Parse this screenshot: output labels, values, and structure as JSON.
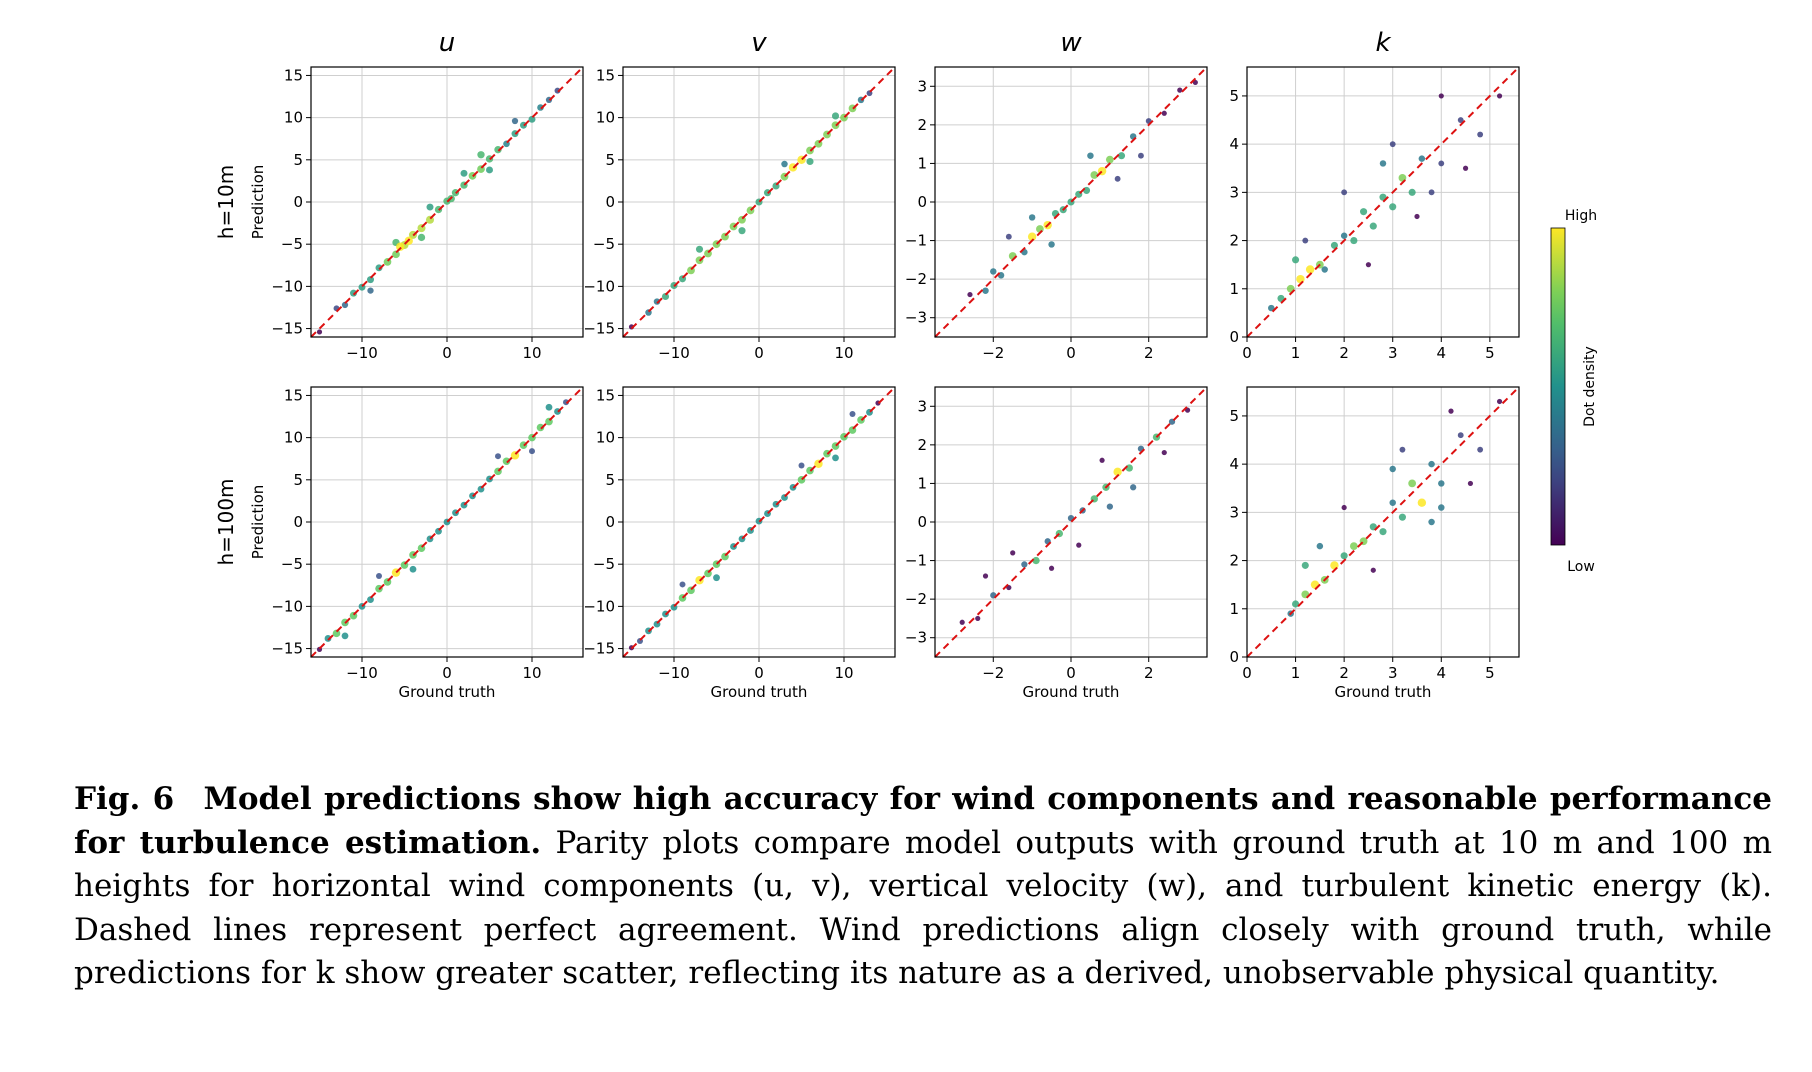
{
  "chart_data": {
    "type": "scatter",
    "description_style": "density-colored parity scatter grid",
    "columns": [
      "u",
      "v",
      "w",
      "k"
    ],
    "rows": [
      "h=10m",
      "h=100m"
    ],
    "xlabel": "Ground truth",
    "ylabel": "Prediction",
    "colorbar": {
      "label": "Dot density",
      "high": "High",
      "low": "Low",
      "colormap": "viridis"
    },
    "reference_line": {
      "style": "dashed",
      "color": "#dd1111"
    },
    "panels": [
      {
        "row": "h=10m",
        "col": "u",
        "xlim": [
          -16,
          16
        ],
        "ylim": [
          -16,
          16
        ],
        "xticks": [
          -10,
          0,
          10
        ],
        "yticks": [
          -15,
          -10,
          -5,
          0,
          5,
          10,
          15
        ],
        "points": [
          [
            -15,
            -15.4
          ],
          [
            -13,
            -12.6
          ],
          [
            -12,
            -12.2
          ],
          [
            -11,
            -10.8
          ],
          [
            -10,
            -10.1
          ],
          [
            -9,
            -9.2
          ],
          [
            -8,
            -7.8
          ],
          [
            -7,
            -7.1
          ],
          [
            -6,
            -6.2
          ],
          [
            -5.5,
            -5.3
          ],
          [
            -5,
            -5.1
          ],
          [
            -4.5,
            -4.6
          ],
          [
            -4,
            -3.9
          ],
          [
            -3,
            -3.1
          ],
          [
            -2,
            -2.1
          ],
          [
            -1,
            -0.9
          ],
          [
            0,
            0.1
          ],
          [
            0.5,
            0.4
          ],
          [
            1,
            1.1
          ],
          [
            2,
            2.0
          ],
          [
            3,
            3.1
          ],
          [
            4,
            3.9
          ],
          [
            5,
            5.1
          ],
          [
            6,
            6.2
          ],
          [
            7,
            6.9
          ],
          [
            8,
            8.1
          ],
          [
            9,
            9.1
          ],
          [
            10,
            9.8
          ],
          [
            11,
            11.2
          ],
          [
            12,
            12.1
          ],
          [
            13,
            13.2
          ],
          [
            -6,
            -4.8
          ],
          [
            -3,
            -4.2
          ],
          [
            2,
            3.4
          ],
          [
            5,
            3.8
          ],
          [
            8,
            9.6
          ],
          [
            -9,
            -10.5
          ],
          [
            4,
            5.6
          ],
          [
            -2,
            -0.6
          ]
        ]
      },
      {
        "row": "h=10m",
        "col": "v",
        "xlim": [
          -16,
          16
        ],
        "ylim": [
          -16,
          16
        ],
        "xticks": [
          -10,
          0,
          10
        ],
        "yticks": [
          -15,
          -10,
          -5,
          0,
          5,
          10,
          15
        ],
        "points": [
          [
            -15,
            -14.8
          ],
          [
            -13,
            -13.1
          ],
          [
            -12,
            -11.8
          ],
          [
            -11,
            -11.2
          ],
          [
            -10,
            -9.9
          ],
          [
            -9,
            -9.1
          ],
          [
            -8,
            -8.1
          ],
          [
            -7,
            -6.9
          ],
          [
            -6,
            -6.1
          ],
          [
            -5,
            -5.0
          ],
          [
            -4,
            -4.1
          ],
          [
            -3,
            -2.9
          ],
          [
            -2,
            -2.1
          ],
          [
            -1,
            -1.0
          ],
          [
            0,
            0.0
          ],
          [
            1,
            1.1
          ],
          [
            2,
            1.9
          ],
          [
            3,
            3.0
          ],
          [
            4,
            4.1
          ],
          [
            5,
            5.0
          ],
          [
            6,
            6.1
          ],
          [
            7,
            6.9
          ],
          [
            8,
            8.0
          ],
          [
            9,
            9.1
          ],
          [
            10,
            10.0
          ],
          [
            11,
            11.1
          ],
          [
            12,
            12.1
          ],
          [
            13,
            12.9
          ],
          [
            -7,
            -5.6
          ],
          [
            -2,
            -3.4
          ],
          [
            3,
            4.5
          ],
          [
            6,
            4.8
          ],
          [
            9,
            10.2
          ]
        ]
      },
      {
        "row": "h=10m",
        "col": "w",
        "xlim": [
          -3.5,
          3.5
        ],
        "ylim": [
          -3.5,
          3.5
        ],
        "xticks": [
          -2,
          0,
          2
        ],
        "yticks": [
          -3,
          -2,
          -1,
          0,
          1,
          2,
          3
        ],
        "points": [
          [
            -2.6,
            -2.4
          ],
          [
            -2.2,
            -2.3
          ],
          [
            -2.0,
            -1.8
          ],
          [
            -1.8,
            -1.9
          ],
          [
            -1.5,
            -1.4
          ],
          [
            -1.2,
            -1.3
          ],
          [
            -1.0,
            -0.9
          ],
          [
            -0.8,
            -0.7
          ],
          [
            -0.6,
            -0.6
          ],
          [
            -0.4,
            -0.3
          ],
          [
            -0.2,
            -0.2
          ],
          [
            0,
            0
          ],
          [
            0.2,
            0.2
          ],
          [
            0.4,
            0.3
          ],
          [
            0.6,
            0.7
          ],
          [
            0.8,
            0.8
          ],
          [
            1.0,
            1.1
          ],
          [
            1.3,
            1.2
          ],
          [
            1.6,
            1.7
          ],
          [
            2.0,
            2.1
          ],
          [
            2.4,
            2.3
          ],
          [
            2.8,
            2.9
          ],
          [
            3.2,
            3.1
          ],
          [
            -1.0,
            -0.4
          ],
          [
            0.5,
            1.2
          ],
          [
            1.2,
            0.6
          ],
          [
            -0.5,
            -1.1
          ],
          [
            1.8,
            1.2
          ],
          [
            -1.6,
            -0.9
          ]
        ]
      },
      {
        "row": "h=10m",
        "col": "k",
        "xlim": [
          0,
          5.6
        ],
        "ylim": [
          0,
          5.6
        ],
        "xticks": [
          0,
          1,
          2,
          3,
          4,
          5
        ],
        "yticks": [
          0,
          1,
          2,
          3,
          4,
          5
        ],
        "points": [
          [
            0.5,
            0.6
          ],
          [
            0.7,
            0.8
          ],
          [
            0.9,
            1.0
          ],
          [
            1.1,
            1.2
          ],
          [
            1.3,
            1.4
          ],
          [
            1.5,
            1.5
          ],
          [
            1.6,
            1.4
          ],
          [
            1.8,
            1.9
          ],
          [
            2.0,
            2.1
          ],
          [
            2.2,
            2.0
          ],
          [
            2.4,
            2.6
          ],
          [
            2.6,
            2.3
          ],
          [
            2.8,
            2.9
          ],
          [
            3.0,
            2.7
          ],
          [
            3.2,
            3.3
          ],
          [
            3.4,
            3.0
          ],
          [
            3.6,
            3.7
          ],
          [
            4.0,
            3.6
          ],
          [
            4.4,
            4.5
          ],
          [
            4.8,
            4.2
          ],
          [
            5.2,
            5.0
          ],
          [
            1.2,
            2.0
          ],
          [
            2.0,
            3.0
          ],
          [
            2.5,
            1.5
          ],
          [
            3.0,
            4.0
          ],
          [
            3.5,
            2.5
          ],
          [
            4.0,
            5.0
          ],
          [
            4.5,
            3.5
          ],
          [
            1.0,
            1.6
          ],
          [
            2.8,
            3.6
          ],
          [
            3.8,
            3.0
          ]
        ]
      },
      {
        "row": "h=100m",
        "col": "u",
        "xlim": [
          -16,
          16
        ],
        "ylim": [
          -16,
          16
        ],
        "xticks": [
          -10,
          0,
          10
        ],
        "yticks": [
          -15,
          -10,
          -5,
          0,
          5,
          10,
          15
        ],
        "points": [
          [
            -15,
            -15.1
          ],
          [
            -14,
            -13.8
          ],
          [
            -13,
            -13.2
          ],
          [
            -12,
            -11.9
          ],
          [
            -11,
            -11.1
          ],
          [
            -10,
            -10.0
          ],
          [
            -9,
            -9.2
          ],
          [
            -8,
            -7.9
          ],
          [
            -7,
            -7.1
          ],
          [
            -6,
            -6.0
          ],
          [
            -5,
            -5.1
          ],
          [
            -4,
            -3.9
          ],
          [
            -3,
            -3.1
          ],
          [
            -2,
            -2.0
          ],
          [
            -1,
            -1.1
          ],
          [
            0,
            0.0
          ],
          [
            1,
            1.1
          ],
          [
            2,
            2.0
          ],
          [
            3,
            3.1
          ],
          [
            4,
            3.9
          ],
          [
            5,
            5.1
          ],
          [
            6,
            6.0
          ],
          [
            7,
            7.2
          ],
          [
            8,
            7.9
          ],
          [
            9,
            9.1
          ],
          [
            10,
            10.0
          ],
          [
            11,
            11.2
          ],
          [
            12,
            11.9
          ],
          [
            13,
            13.1
          ],
          [
            14,
            14.2
          ],
          [
            -8,
            -6.4
          ],
          [
            -4,
            -5.6
          ],
          [
            6,
            7.8
          ],
          [
            10,
            8.4
          ],
          [
            12,
            13.6
          ],
          [
            -12,
            -13.5
          ]
        ]
      },
      {
        "row": "h=100m",
        "col": "v",
        "xlim": [
          -16,
          16
        ],
        "ylim": [
          -16,
          16
        ],
        "xticks": [
          -10,
          0,
          10
        ],
        "yticks": [
          -15,
          -10,
          -5,
          0,
          5,
          10,
          15
        ],
        "points": [
          [
            -15,
            -14.9
          ],
          [
            -14,
            -14.1
          ],
          [
            -13,
            -12.9
          ],
          [
            -12,
            -12.1
          ],
          [
            -11,
            -10.9
          ],
          [
            -10,
            -10.1
          ],
          [
            -9,
            -9.0
          ],
          [
            -8,
            -8.1
          ],
          [
            -7,
            -6.9
          ],
          [
            -6,
            -6.1
          ],
          [
            -5,
            -5.0
          ],
          [
            -4,
            -4.1
          ],
          [
            -3,
            -2.9
          ],
          [
            -2,
            -2.0
          ],
          [
            -1,
            -1.0
          ],
          [
            0,
            0.1
          ],
          [
            1,
            1.0
          ],
          [
            2,
            2.1
          ],
          [
            3,
            2.9
          ],
          [
            4,
            4.1
          ],
          [
            5,
            5.0
          ],
          [
            6,
            6.1
          ],
          [
            7,
            6.9
          ],
          [
            8,
            8.1
          ],
          [
            9,
            9.0
          ],
          [
            10,
            10.1
          ],
          [
            11,
            10.9
          ],
          [
            12,
            12.1
          ],
          [
            13,
            13.0
          ],
          [
            14,
            14.1
          ],
          [
            -9,
            -7.4
          ],
          [
            -5,
            -6.6
          ],
          [
            5,
            6.7
          ],
          [
            9,
            7.6
          ],
          [
            11,
            12.8
          ]
        ]
      },
      {
        "row": "h=100m",
        "col": "w",
        "xlim": [
          -3.5,
          3.5
        ],
        "ylim": [
          -3.5,
          3.5
        ],
        "xticks": [
          -2,
          0,
          2
        ],
        "yticks": [
          -3,
          -2,
          -1,
          0,
          1,
          2,
          3
        ],
        "points": [
          [
            -2.8,
            -2.6
          ],
          [
            -2.4,
            -2.5
          ],
          [
            -2.0,
            -1.9
          ],
          [
            -1.6,
            -1.7
          ],
          [
            -1.2,
            -1.1
          ],
          [
            -0.9,
            -1.0
          ],
          [
            -0.6,
            -0.5
          ],
          [
            -0.3,
            -0.3
          ],
          [
            0,
            0.1
          ],
          [
            0.3,
            0.3
          ],
          [
            0.6,
            0.6
          ],
          [
            0.9,
            0.9
          ],
          [
            1.2,
            1.3
          ],
          [
            1.5,
            1.4
          ],
          [
            1.8,
            1.9
          ],
          [
            2.2,
            2.2
          ],
          [
            2.6,
            2.6
          ],
          [
            3.0,
            2.9
          ],
          [
            -1.5,
            -0.8
          ],
          [
            -0.5,
            -1.2
          ],
          [
            0.8,
            1.6
          ],
          [
            1.6,
            0.9
          ],
          [
            2.4,
            1.8
          ],
          [
            -2.2,
            -1.4
          ],
          [
            0.2,
            -0.6
          ],
          [
            1.0,
            0.4
          ]
        ]
      },
      {
        "row": "h=100m",
        "col": "k",
        "xlim": [
          0,
          5.6
        ],
        "ylim": [
          0,
          5.6
        ],
        "xticks": [
          0,
          1,
          2,
          3,
          4,
          5
        ],
        "yticks": [
          0,
          1,
          2,
          3,
          4,
          5
        ],
        "points": [
          [
            0.9,
            0.9
          ],
          [
            1.0,
            1.1
          ],
          [
            1.2,
            1.3
          ],
          [
            1.4,
            1.5
          ],
          [
            1.6,
            1.6
          ],
          [
            1.8,
            1.9
          ],
          [
            2.0,
            2.1
          ],
          [
            2.2,
            2.3
          ],
          [
            2.4,
            2.4
          ],
          [
            2.6,
            2.7
          ],
          [
            2.8,
            2.6
          ],
          [
            3.0,
            3.2
          ],
          [
            3.2,
            2.9
          ],
          [
            3.4,
            3.6
          ],
          [
            3.6,
            3.2
          ],
          [
            3.8,
            4.0
          ],
          [
            4.0,
            3.6
          ],
          [
            4.4,
            4.6
          ],
          [
            4.8,
            4.3
          ],
          [
            5.2,
            5.3
          ],
          [
            1.5,
            2.3
          ],
          [
            2.0,
            3.1
          ],
          [
            2.6,
            1.8
          ],
          [
            3.2,
            4.3
          ],
          [
            3.8,
            2.8
          ],
          [
            4.2,
            5.1
          ],
          [
            4.6,
            3.6
          ],
          [
            1.2,
            1.9
          ],
          [
            3.0,
            3.9
          ],
          [
            4.0,
            3.1
          ]
        ]
      }
    ]
  },
  "caption": {
    "number": "Fig. 6",
    "title": "Model predictions show high accuracy for wind components and reasonable performance for turbulence estimation.",
    "body": "Parity plots compare model outputs with ground truth at 10 m and 100 m heights for horizontal wind components (u, v), vertical velocity (w), and turbulent kinetic energy (k). Dashed lines represent perfect agreement. Wind predictions align closely with ground truth, while predictions for k show greater scatter, reflecting its nature as a derived, unobservable physical quantity."
  }
}
